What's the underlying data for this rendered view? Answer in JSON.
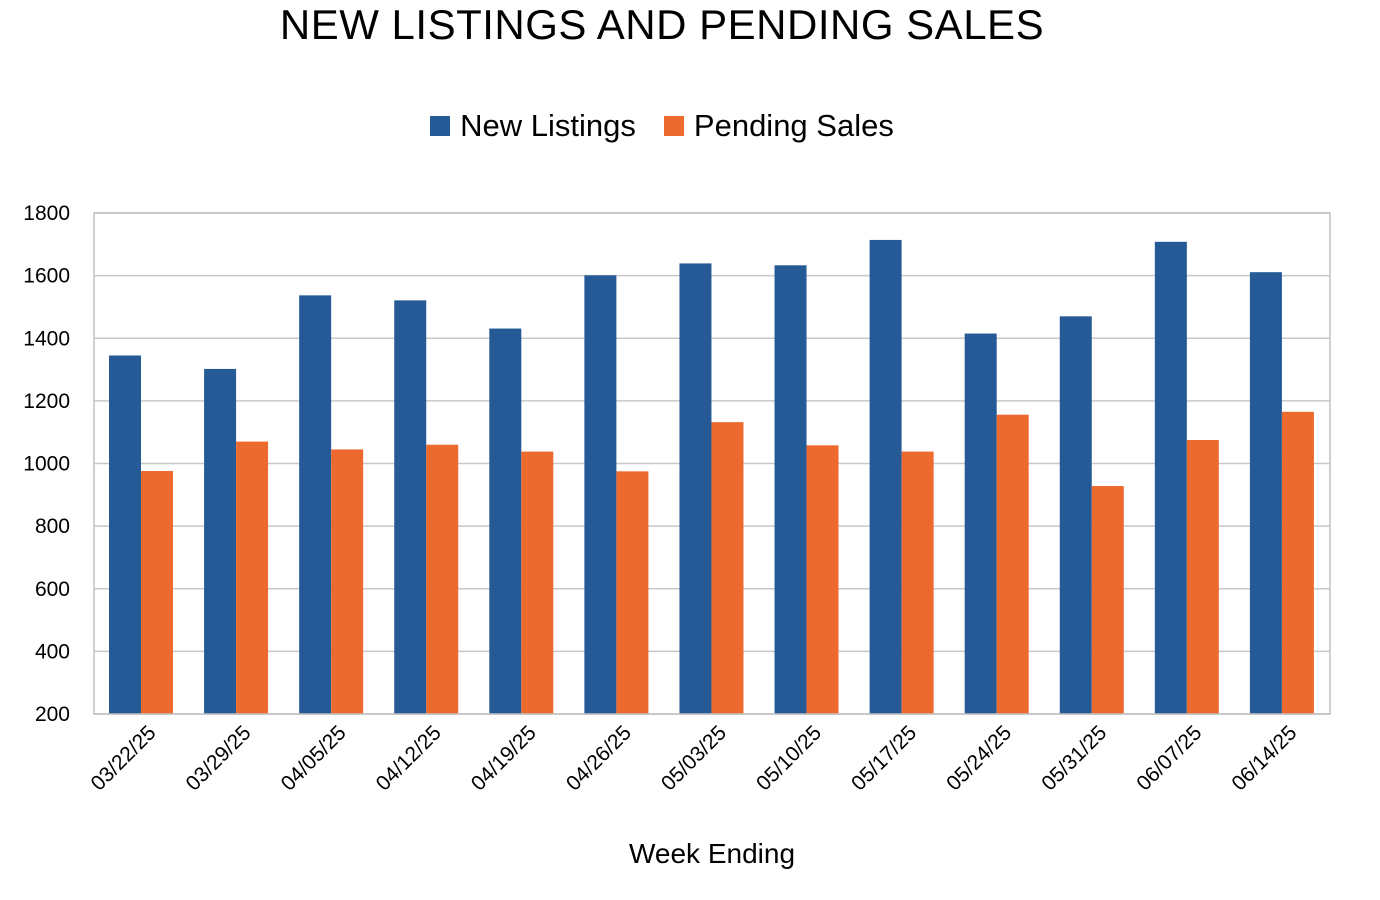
{
  "chart_data": {
    "type": "bar",
    "title": "NEW LISTINGS AND PENDING SALES",
    "xlabel": "Week Ending",
    "ylabel": "",
    "categories": [
      "03/22/25",
      "03/29/25",
      "04/05/25",
      "04/12/25",
      "04/19/25",
      "04/26/25",
      "05/03/25",
      "05/10/25",
      "05/17/25",
      "05/24/25",
      "05/31/25",
      "06/07/25",
      "06/14/25"
    ],
    "series": [
      {
        "name": "New Listings",
        "color": "#255a97",
        "values": [
          1345,
          1302,
          1537,
          1521,
          1431,
          1601,
          1639,
          1633,
          1714,
          1415,
          1470,
          1708,
          1611
        ]
      },
      {
        "name": "Pending Sales",
        "color": "#ed6a2f",
        "values": [
          976,
          1070,
          1045,
          1060,
          1038,
          975,
          1132,
          1058,
          1038,
          1156,
          928,
          1075,
          1165
        ]
      }
    ],
    "ylim": [
      200,
      1800
    ],
    "yticks": [
      200,
      400,
      600,
      800,
      1000,
      1200,
      1400,
      1600,
      1800
    ],
    "grid": true,
    "legend_position": "top-center"
  }
}
